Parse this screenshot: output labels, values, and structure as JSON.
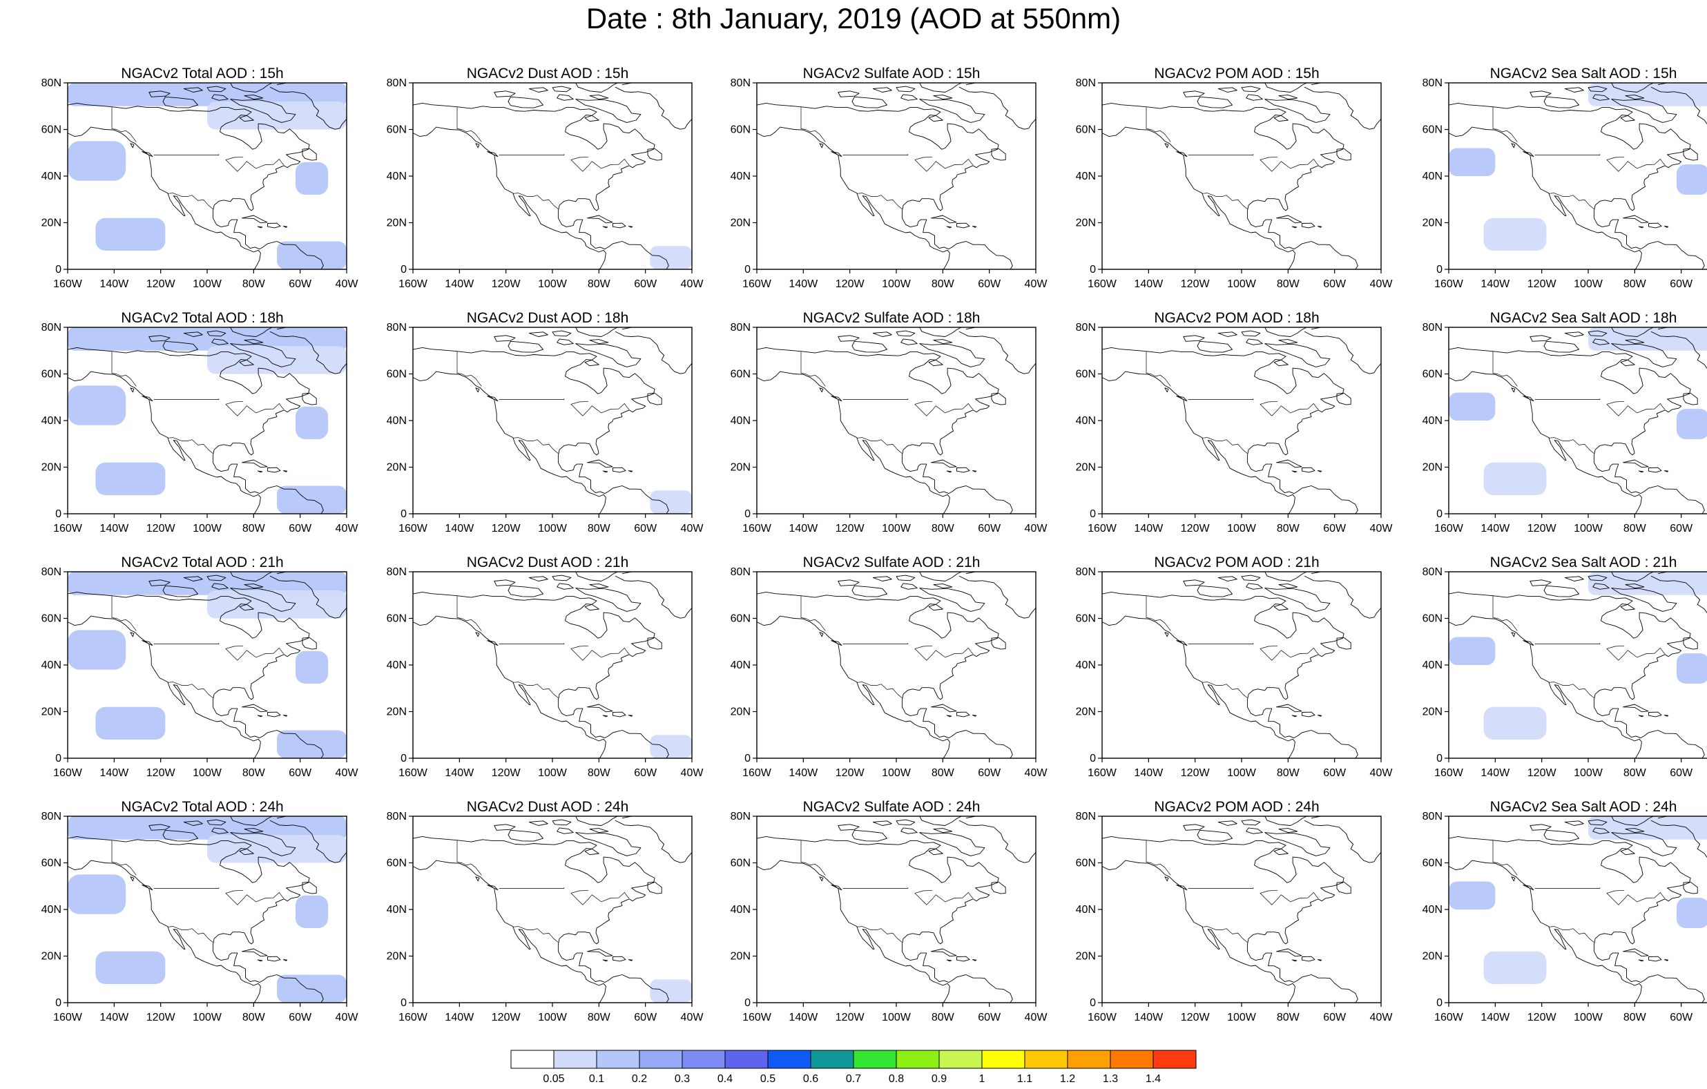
{
  "title": "Date : 8th January, 2019 (AOD at 550nm)",
  "map": {
    "projection": "cylindrical-equidistant",
    "lon_range": [
      -160,
      -40
    ],
    "lat_range": [
      0,
      80
    ],
    "lat_ticks": [
      "0",
      "20N",
      "40N",
      "60N",
      "80N"
    ],
    "lon_ticks": [
      "160W",
      "140W",
      "120W",
      "100W",
      "80W",
      "60W",
      "40W"
    ],
    "land_outline_color": "#000000"
  },
  "rows": [
    {
      "hour": "15h",
      "panels": [
        {
          "title": "NGACv2 Total AOD : 15h",
          "field": "total"
        },
        {
          "title": "NGACv2 Dust AOD : 15h",
          "field": "dust"
        },
        {
          "title": "NGACv2 Sulfate AOD : 15h",
          "field": "sulfate"
        },
        {
          "title": "NGACv2 POM AOD : 15h",
          "field": "pom"
        },
        {
          "title": "NGACv2 Sea Salt AOD : 15h",
          "field": "seasalt"
        }
      ]
    },
    {
      "hour": "18h",
      "panels": [
        {
          "title": "NGACv2 Total AOD : 18h",
          "field": "total"
        },
        {
          "title": "NGACv2 Dust AOD : 18h",
          "field": "dust"
        },
        {
          "title": "NGACv2 Sulfate AOD : 18h",
          "field": "sulfate"
        },
        {
          "title": "NGACv2 POM AOD : 18h",
          "field": "pom"
        },
        {
          "title": "NGACv2 Sea Salt AOD : 18h",
          "field": "seasalt"
        }
      ]
    },
    {
      "hour": "21h",
      "panels": [
        {
          "title": "NGACv2 Total AOD : 21h",
          "field": "total"
        },
        {
          "title": "NGACv2 Dust AOD : 21h",
          "field": "dust"
        },
        {
          "title": "NGACv2 Sulfate AOD : 21h",
          "field": "sulfate"
        },
        {
          "title": "NGACv2 POM AOD : 21h",
          "field": "pom"
        },
        {
          "title": "NGACv2 Sea Salt AOD : 21h",
          "field": "seasalt"
        }
      ]
    },
    {
      "hour": "24h",
      "panels": [
        {
          "title": "NGACv2 Total AOD : 24h",
          "field": "total"
        },
        {
          "title": "NGACv2 Dust AOD : 24h",
          "field": "dust"
        },
        {
          "title": "NGACv2 Sulfate AOD : 24h",
          "field": "sulfate"
        },
        {
          "title": "NGACv2 POM AOD : 24h",
          "field": "pom"
        },
        {
          "title": "NGACv2 Sea Salt  AOD : 24h",
          "field": "seasalt"
        }
      ]
    }
  ],
  "colorbar": {
    "labels": [
      "0.05",
      "0.1",
      "0.2",
      "0.3",
      "0.4",
      "0.5",
      "0.6",
      "0.7",
      "0.8",
      "0.9",
      "1",
      "1.1",
      "1.2",
      "1.3",
      "1.4"
    ],
    "colors": [
      "#ffffff",
      "#d2dcfa",
      "#b4c6fa",
      "#96aaf5",
      "#7d8cf5",
      "#5f64f0",
      "#0f5af5",
      "#0f9696",
      "#32e632",
      "#8cf014",
      "#c8f550",
      "#ffff00",
      "#ffc800",
      "#ffa000",
      "#ff7800",
      "#ff3c0f"
    ]
  },
  "chart_data": {
    "type": "heatmap",
    "title": "Date : 8th January, 2019 (AOD at 550nm)",
    "variables": [
      "Total AOD",
      "Dust AOD",
      "Sulfate AOD",
      "POM AOD",
      "Sea Salt AOD"
    ],
    "forecast_hours": [
      "15h",
      "18h",
      "21h",
      "24h"
    ],
    "x_ticks": [
      "160W",
      "140W",
      "120W",
      "100W",
      "80W",
      "60W",
      "40W"
    ],
    "y_ticks": [
      "0",
      "20N",
      "40N",
      "60N",
      "80N"
    ],
    "xlim": [
      -160,
      -40
    ],
    "ylim": [
      0,
      80
    ],
    "levels": [
      0.05,
      0.1,
      0.2,
      0.3,
      0.4,
      0.5,
      0.6,
      0.7,
      0.8,
      0.9,
      1,
      1.1,
      1.2,
      1.3,
      1.4
    ],
    "regions": {
      "total": [
        {
          "lon": [
            -160,
            -135
          ],
          "lat": [
            38,
            55
          ],
          "aod": 0.1
        },
        {
          "lon": [
            -148,
            -118
          ],
          "lat": [
            8,
            22
          ],
          "aod": 0.1
        },
        {
          "lon": [
            -70,
            -40
          ],
          "lat": [
            0,
            12
          ],
          "aod": 0.15
        },
        {
          "lon": [
            -62,
            -48
          ],
          "lat": [
            32,
            46
          ],
          "aod": 0.15
        },
        {
          "lon": [
            -160,
            -40
          ],
          "lat": [
            70,
            80
          ],
          "aod": 0.1
        },
        {
          "lon": [
            -100,
            -40
          ],
          "lat": [
            60,
            72
          ],
          "aod": 0.07
        }
      ],
      "dust": [
        {
          "lon": [
            -58,
            -40
          ],
          "lat": [
            0,
            10
          ],
          "aod": 0.07
        }
      ],
      "sulfate": [],
      "pom": [],
      "seasalt": [
        {
          "lon": [
            -160,
            -140
          ],
          "lat": [
            40,
            52
          ],
          "aod": 0.1
        },
        {
          "lon": [
            -145,
            -118
          ],
          "lat": [
            8,
            22
          ],
          "aod": 0.08
        },
        {
          "lon": [
            -62,
            -48
          ],
          "lat": [
            32,
            45
          ],
          "aod": 0.12
        },
        {
          "lon": [
            -100,
            -40
          ],
          "lat": [
            70,
            80
          ],
          "aod": 0.07
        }
      ]
    }
  }
}
